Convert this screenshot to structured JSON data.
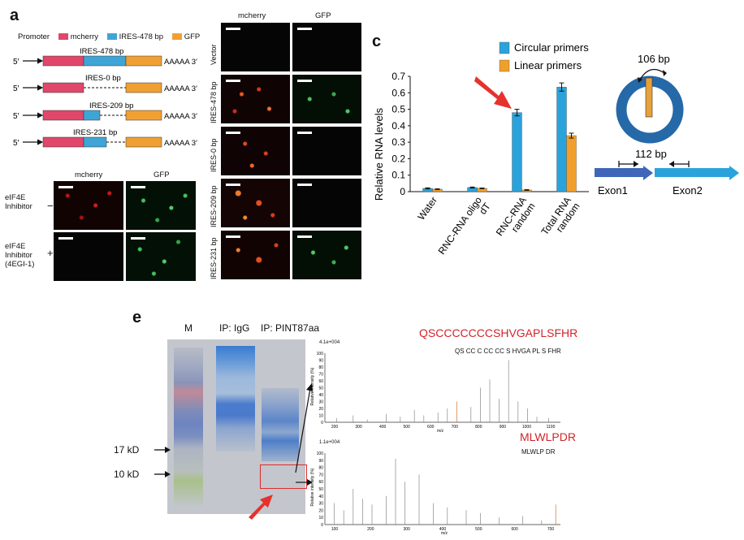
{
  "panel_a": {
    "letter": "a",
    "legend": {
      "promoter": "Promoter",
      "items": [
        {
          "label": "mcherry",
          "color": "#e0476a"
        },
        {
          "label": "IRES-478 bp",
          "color": "#3fa5d6"
        },
        {
          "label": "GFP",
          "color": "#f0a033"
        }
      ]
    },
    "constructs": [
      {
        "title": "IRES-478 bp",
        "prefix": "5′",
        "suffix": "AAAAA 3′"
      },
      {
        "title": "IRES-0 bp",
        "prefix": "5′",
        "suffix": "AAAAA 3′"
      },
      {
        "title": "IRES-209 bp",
        "prefix": "5′",
        "suffix": "AAAAA 3′"
      },
      {
        "title": "IRES-231 bp",
        "prefix": "5′",
        "suffix": "AAAAA 3′"
      }
    ],
    "grid_headers": [
      "mcherry",
      "GFP"
    ],
    "grid_rows": [
      "Vector",
      "IRES-478 bp",
      "IRES-0 bp",
      "IRES-209 bp",
      "IRES-231 bp"
    ],
    "inhibitor_headers": [
      "mcherry",
      "GFP"
    ],
    "inhibitor_rows": [
      {
        "label": "eIF4E Inhibitor",
        "sign": "−"
      },
      {
        "label": "eIF4E Inhibitor (4EGI-1)",
        "sign": "+"
      }
    ]
  },
  "panel_c": {
    "letter": "c",
    "circle_label": "106 bp",
    "linear_label": "112 bp",
    "exons": [
      "Exon1",
      "Exon2"
    ]
  },
  "panel_e": {
    "letter": "e",
    "gel_headers": [
      "M",
      "IP: IgG",
      "IP: PINT87aa"
    ],
    "markers": [
      "17 kD",
      "10 kD"
    ],
    "spectra": [
      {
        "peptide": "QSCCCCCCCSHVGAPLSFHR",
        "scale": "4.1e+004",
        "sequence": "QS CC C CC CC S HVGA PL S FHR",
        "x_ticks": [
          "200",
          "300",
          "400",
          "500",
          "600",
          "700",
          "800",
          "900",
          "1000",
          "1100"
        ],
        "xlabel": "m/z",
        "ylabel": "Relative intensity (%)"
      },
      {
        "peptide": "MLWLPDR",
        "scale": "1.1e+004",
        "sequence": "MLWLP DR",
        "x_ticks": [
          "100",
          "200",
          "300",
          "400",
          "500",
          "600",
          "700"
        ],
        "xlabel": "m/z",
        "ylabel": "Relative intensity (%)"
      }
    ],
    "y_ticks": [
      "0",
      "10",
      "20",
      "30",
      "40",
      "50",
      "60",
      "70",
      "80",
      "90",
      "100"
    ]
  },
  "chart_data": {
    "type": "bar",
    "ylabel": "Relative RNA levels",
    "ylim": [
      0,
      0.7
    ],
    "yticks": [
      0,
      0.1,
      0.2,
      0.3,
      0.4,
      0.5,
      0.6,
      0.7
    ],
    "categories": [
      "Water",
      "RNC-RNA oligo dT",
      "RNC-RNA random",
      "Total RNA random"
    ],
    "series": [
      {
        "name": "Circular primers",
        "color": "#2aa3dc",
        "values": [
          0.02,
          0.025,
          0.48,
          0.635
        ],
        "errors": [
          0.003,
          0.003,
          0.02,
          0.025
        ]
      },
      {
        "name": "Linear primers",
        "color": "#f0a02a",
        "values": [
          0.015,
          0.02,
          0.01,
          0.34
        ],
        "errors": [
          0.002,
          0.002,
          0.002,
          0.015
        ]
      }
    ],
    "legend_position": "top-right",
    "grid": false
  }
}
